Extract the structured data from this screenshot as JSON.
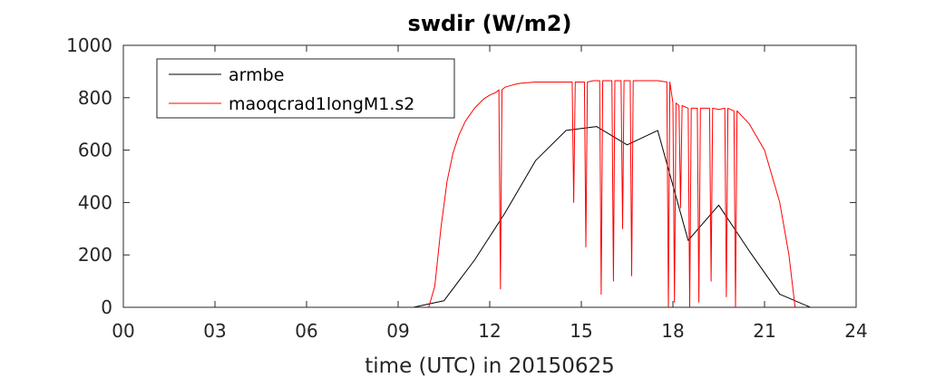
{
  "chart_data": {
    "type": "line",
    "title": "swdir  (W/m2)",
    "xlabel": "time (UTC) in 20150625",
    "ylabel": "",
    "xlim": [
      0,
      24
    ],
    "ylim": [
      0,
      1000
    ],
    "xticks": [
      0,
      3,
      6,
      9,
      12,
      15,
      18,
      21,
      24
    ],
    "xtick_labels": [
      "00",
      "03",
      "06",
      "09",
      "12",
      "15",
      "18",
      "21",
      "24"
    ],
    "yticks": [
      0,
      200,
      400,
      600,
      800,
      1000
    ],
    "ytick_labels": [
      "0",
      "200",
      "400",
      "600",
      "800",
      "1000"
    ],
    "grid": false,
    "legend_position": "top-left",
    "series": [
      {
        "name": "armbe",
        "color": "#000000",
        "x": [
          0,
          1,
          2,
          3,
          4,
          5,
          6,
          7,
          8,
          9,
          9.5,
          10.5,
          11.5,
          12.5,
          13.5,
          14.5,
          15.5,
          16.5,
          17.5,
          18.5,
          19.5,
          20.5,
          21.5,
          22.5,
          23.5,
          24
        ],
        "y": [
          0,
          0,
          0,
          0,
          0,
          0,
          0,
          0,
          0,
          0,
          0,
          25,
          180,
          360,
          560,
          675,
          690,
          620,
          675,
          255,
          390,
          215,
          50,
          0,
          0,
          0
        ]
      },
      {
        "name": "maoqcrad1longM1.s2",
        "color": "#ff0000",
        "x": [
          0,
          10.0,
          10.2,
          10.4,
          10.6,
          10.8,
          11.0,
          11.2,
          11.5,
          11.8,
          12.0,
          12.2,
          12.3,
          12.35,
          12.4,
          12.5,
          12.8,
          13.0,
          13.5,
          14.0,
          14.5,
          14.7,
          14.75,
          14.8,
          15.0,
          15.1,
          15.15,
          15.2,
          15.4,
          15.6,
          15.65,
          15.7,
          15.9,
          16.0,
          16.05,
          16.1,
          16.3,
          16.35,
          16.4,
          16.6,
          16.65,
          16.7,
          16.9,
          17.0,
          17.5,
          17.8,
          17.85,
          17.9,
          18.0,
          18.05,
          18.1,
          18.2,
          18.25,
          18.3,
          18.5,
          18.55,
          18.6,
          18.8,
          18.85,
          18.9,
          19.0,
          19.2,
          19.25,
          19.3,
          19.5,
          19.7,
          19.75,
          19.8,
          20.0,
          20.05,
          20.1,
          20.5,
          21.0,
          21.5,
          21.8,
          22.0,
          24
        ],
        "y": [
          0,
          0,
          80,
          300,
          480,
          590,
          660,
          710,
          760,
          795,
          810,
          820,
          830,
          70,
          830,
          840,
          850,
          855,
          860,
          860,
          860,
          860,
          400,
          860,
          860,
          860,
          230,
          860,
          865,
          865,
          50,
          865,
          865,
          865,
          100,
          865,
          865,
          300,
          865,
          865,
          120,
          865,
          865,
          865,
          865,
          860,
          0,
          860,
          780,
          20,
          780,
          770,
          380,
          770,
          760,
          0,
          760,
          760,
          20,
          760,
          760,
          760,
          100,
          760,
          755,
          760,
          40,
          760,
          750,
          0,
          750,
          700,
          600,
          400,
          200,
          0,
          0
        ]
      }
    ]
  }
}
